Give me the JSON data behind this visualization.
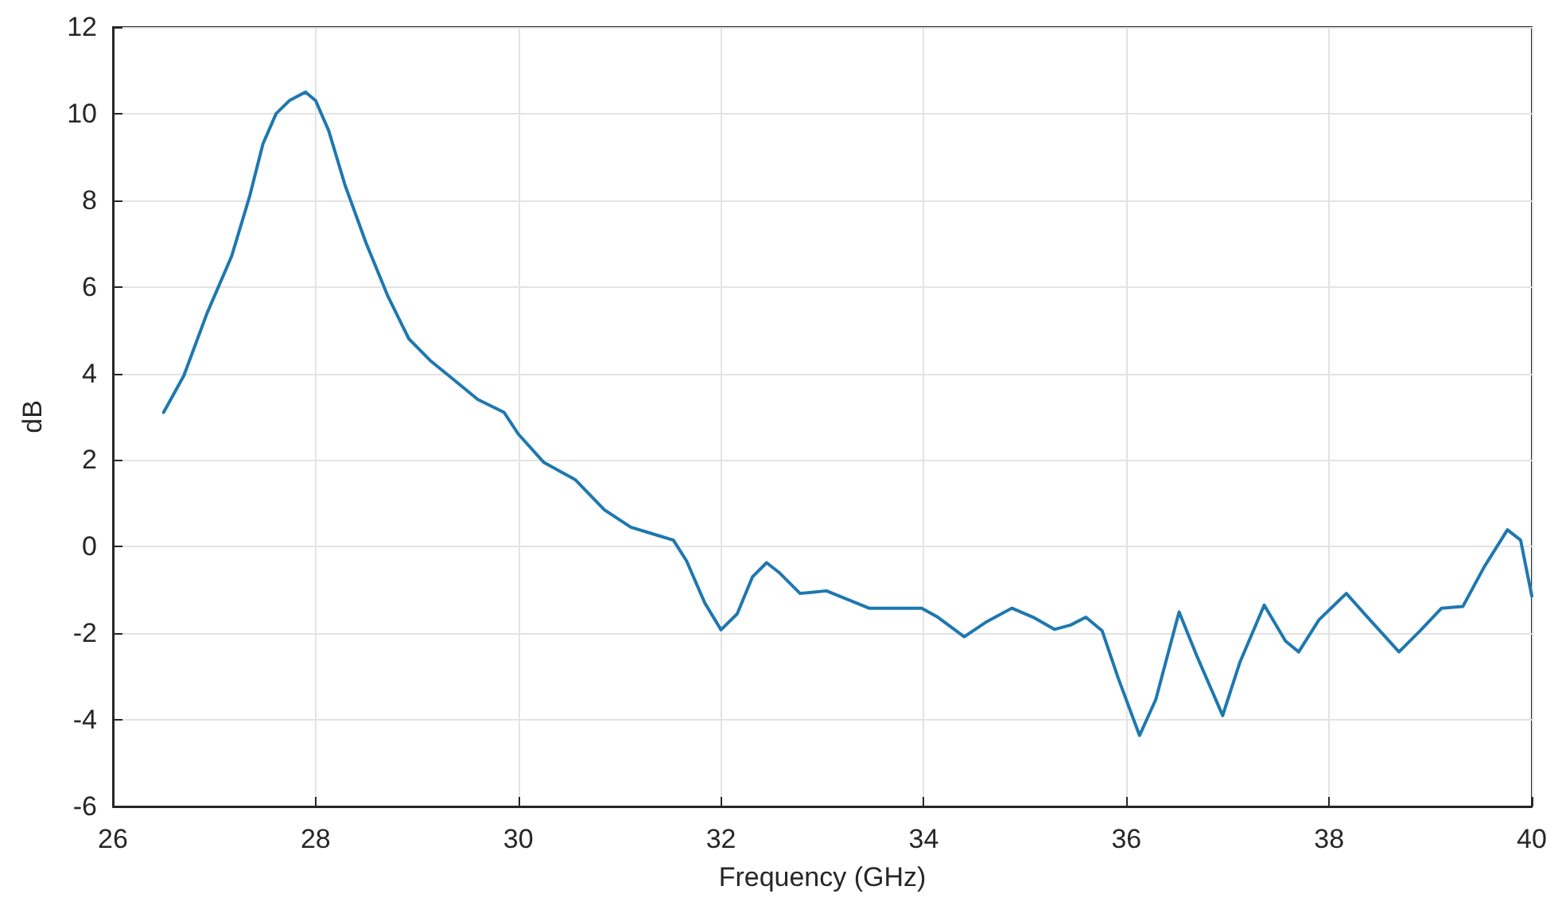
{
  "chart_data": {
    "type": "line",
    "xlabel": "Frequency (GHz)",
    "ylabel": "dB",
    "xlim": [
      26,
      40
    ],
    "xticks": [
      26,
      28,
      30,
      32,
      34,
      36,
      38,
      40
    ],
    "ylim": [
      -6,
      12
    ],
    "yticks": [
      -6,
      -4,
      -2,
      0,
      2,
      4,
      6,
      8,
      10,
      12
    ],
    "grid": true,
    "marker": "none",
    "line_style": "solid",
    "series": [
      {
        "color": "#1e78b0",
        "x": [
          26.5,
          26.7,
          26.93,
          27.17,
          27.35,
          27.48,
          27.61,
          27.74,
          27.9,
          28.0,
          28.13,
          28.29,
          28.5,
          28.71,
          28.92,
          29.13,
          29.34,
          29.6,
          29.86,
          30.0,
          30.25,
          30.56,
          30.85,
          31.11,
          31.32,
          31.53,
          31.66,
          31.84,
          32.0,
          32.16,
          32.31,
          32.45,
          32.57,
          32.78,
          33.04,
          33.46,
          33.78,
          33.98,
          34.14,
          34.4,
          34.61,
          34.87,
          35.08,
          35.29,
          35.45,
          35.6,
          35.76,
          35.92,
          36.13,
          36.29,
          36.52,
          36.7,
          36.95,
          37.12,
          37.36,
          37.57,
          37.7,
          37.9,
          38.17,
          38.38,
          38.69,
          38.9,
          39.11,
          39.32,
          39.53,
          39.76,
          39.89,
          40.0
        ],
        "values": [
          3.1,
          3.95,
          5.4,
          6.7,
          8.1,
          9.3,
          10.0,
          10.3,
          10.5,
          10.3,
          9.6,
          8.35,
          7.0,
          5.8,
          4.8,
          4.3,
          3.9,
          3.4,
          3.1,
          2.6,
          1.95,
          1.55,
          0.85,
          0.45,
          0.3,
          0.15,
          -0.33,
          -1.3,
          -1.92,
          -1.55,
          -0.7,
          -0.37,
          -0.59,
          -1.08,
          -1.02,
          -1.42,
          -1.42,
          -1.42,
          -1.63,
          -2.08,
          -1.75,
          -1.42,
          -1.63,
          -1.91,
          -1.81,
          -1.63,
          -1.94,
          -3.04,
          -4.36,
          -3.53,
          -1.51,
          -2.55,
          -3.9,
          -2.67,
          -1.35,
          -2.18,
          -2.43,
          -1.69,
          -1.08,
          -1.63,
          -2.43,
          -1.94,
          -1.42,
          -1.38,
          -0.47,
          0.39,
          0.15,
          -1.14
        ]
      }
    ]
  }
}
